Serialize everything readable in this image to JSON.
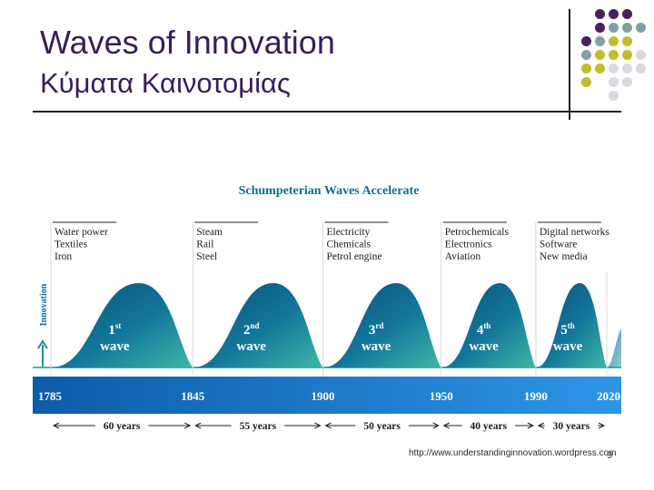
{
  "slide": {
    "title_en": "Waves of Innovation",
    "title_gr": "Κύματα Καινοτομίας",
    "source": "http://www.understandinginnovation.wordpress.com",
    "page_number": "9"
  },
  "decor": {
    "dot_colors": [
      "#4b1f5e",
      "#7fa1a6",
      "#c2bd2c",
      "#d9d9e3"
    ]
  },
  "chart_data": {
    "type": "area",
    "title": "Schumpeterian Waves Accelerate",
    "ylabel": "Innovation",
    "years": [
      "1785",
      "1845",
      "1900",
      "1950",
      "1990",
      "2020"
    ],
    "waves": [
      {
        "ordinal": "1",
        "suffix": "st",
        "label": "wave",
        "start": 1785,
        "end": 1845,
        "techs": [
          "Water power",
          "Textiles",
          "Iron"
        ]
      },
      {
        "ordinal": "2",
        "suffix": "nd",
        "label": "wave",
        "start": 1845,
        "end": 1900,
        "techs": [
          "Steam",
          "Rail",
          "Steel"
        ]
      },
      {
        "ordinal": "3",
        "suffix": "rd",
        "label": "wave",
        "start": 1900,
        "end": 1950,
        "techs": [
          "Electricity",
          "Chemicals",
          "Petrol engine"
        ]
      },
      {
        "ordinal": "4",
        "suffix": "th",
        "label": "wave",
        "start": 1950,
        "end": 1990,
        "techs": [
          "Petrochemicals",
          "Electronics",
          "Aviation"
        ]
      },
      {
        "ordinal": "5",
        "suffix": "th",
        "label": "wave",
        "start": 1990,
        "end": 2020,
        "techs": [
          "Digital networks",
          "Software",
          "New media"
        ]
      }
    ],
    "durations": [
      "60 years",
      "55 years",
      "50 years",
      "40 years",
      "30 years"
    ],
    "colors": {
      "wave_dark": "#0f5f86",
      "wave_light": "#3fb7a6",
      "band": "#1377c9",
      "band_light": "#3aa0ea",
      "text": "#1c1c1c"
    }
  }
}
